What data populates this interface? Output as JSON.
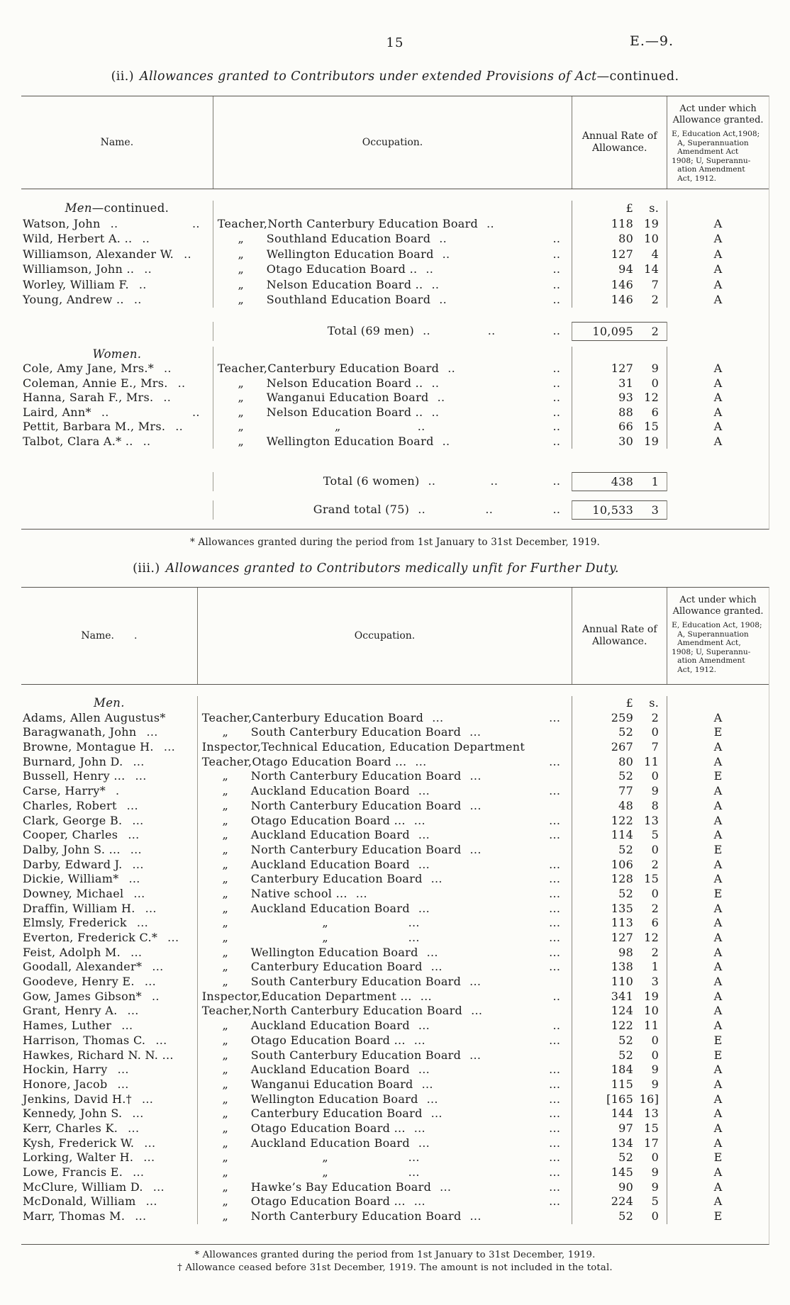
{
  "page": {
    "number": "15",
    "ref": "E.—9."
  },
  "section_ii": {
    "title_prefix": "(ii.)",
    "title_italic": "Allowances granted to Contributors under extended Provisions of Act",
    "title_suffix": "—continued.",
    "header": {
      "name": "Name.",
      "occupation": "Occupation.",
      "rate_lines": [
        "Annual Rate of",
        "Allowance."
      ],
      "act_title_lines": [
        "Act under which",
        "Allowance granted."
      ],
      "act_key_lines": [
        "E, Education Act,1908;",
        "A, Superannuation",
        "Amendment Act",
        "1908; U, Superannu-",
        "ation Amendment",
        "Act, 1912."
      ]
    },
    "money_header": {
      "pounds": "£",
      "shillings": "s."
    },
    "group_men": {
      "italic": "Men",
      "rest": "—continued."
    },
    "group_women": {
      "italic": "Women.",
      "rest": ""
    },
    "men_rows": [
      {
        "name": "Watson, John",
        "name_dots": ".. ..",
        "occ_prefix": "Teacher,",
        "occ": "North Canterbury Education Board",
        "occ_dots": "..",
        "pounds": "118",
        "shillings": "19",
        "act": "A"
      },
      {
        "name": "Wild, Herbert A. ..",
        "name_dots": "..",
        "occ_prefix": "„",
        "occ": "Southland Education Board",
        "occ_dots": ".. ..",
        "pounds": "80",
        "shillings": "10",
        "act": "A"
      },
      {
        "name": "Williamson, Alexander W.",
        "name_dots": "..",
        "occ_prefix": "„",
        "occ": "Wellington Education Board",
        "occ_dots": ".. ..",
        "pounds": "127",
        "shillings": "4",
        "act": "A"
      },
      {
        "name": "Williamson, John ..",
        "name_dots": "..",
        "occ_prefix": "„",
        "occ": "Otago Education Board ..",
        "occ_dots": ".. ..",
        "pounds": "94",
        "shillings": "14",
        "act": "A"
      },
      {
        "name": "Worley, William F.",
        "name_dots": "..",
        "occ_prefix": "„",
        "occ": "Nelson Education Board ..",
        "occ_dots": ".. ..",
        "pounds": "146",
        "shillings": "7",
        "act": "A"
      },
      {
        "name": "Young, Andrew ..",
        "name_dots": "..",
        "occ_prefix": "„",
        "occ": "Southland Education Board",
        "occ_dots": ".. ..",
        "pounds": "146",
        "shillings": "2",
        "act": "A"
      }
    ],
    "total_men": {
      "label": "Total (69 men)",
      "dots": ".. .. ..",
      "pounds": "10,095",
      "shillings": "2"
    },
    "women_rows": [
      {
        "name": "Cole, Amy Jane, Mrs.*",
        "name_dots": "..",
        "occ_prefix": "Teacher,",
        "occ": "Canterbury Education Board",
        "occ_dots": ".. ..",
        "pounds": "127",
        "shillings": "9",
        "act": "A"
      },
      {
        "name": "Coleman, Annie E., Mrs.",
        "name_dots": "..",
        "occ_prefix": "„",
        "occ": "Nelson Education Board ..",
        "occ_dots": ".. ..",
        "pounds": "31",
        "shillings": "0",
        "act": "A"
      },
      {
        "name": "Hanna, Sarah F., Mrs.",
        "name_dots": "..",
        "occ_prefix": "„",
        "occ": "Wanganui Education Board",
        "occ_dots": ".. ..",
        "pounds": "93",
        "shillings": "12",
        "act": "A"
      },
      {
        "name": "Laird, Ann*",
        "name_dots": ".. ..",
        "occ_prefix": "„",
        "occ": "Nelson Education Board ..",
        "occ_dots": ".. ..",
        "pounds": "88",
        "shillings": "6",
        "act": "A"
      },
      {
        "name": "Pettit, Barbara M., Mrs.",
        "name_dots": "..",
        "occ_prefix": "„",
        "occ": "„",
        "occ_dots": ".. ..",
        "pounds": "66",
        "shillings": "15",
        "act": "A"
      },
      {
        "name": "Talbot, Clara A.* ..",
        "name_dots": "..",
        "occ_prefix": "„",
        "occ": "Wellington Education Board",
        "occ_dots": ".. ..",
        "pounds": "30",
        "shillings": "19",
        "act": "A"
      }
    ],
    "total_women": {
      "label": "Total (6 women)",
      "dots": ".. .. ..",
      "pounds": "438",
      "shillings": "1"
    },
    "grand_total": {
      "label": "Grand total (75)",
      "dots": ".. .. ..",
      "pounds": "10,533",
      "shillings": "3"
    },
    "footnote": "* Allowances granted during the period from 1st January to 31st December, 1919."
  },
  "section_iii": {
    "title_prefix": "(iii.)",
    "title_italic": "Allowances granted to Contributors medically unfit for Further Duty.",
    "title_suffix": "",
    "header": {
      "name": "Name.",
      "stray_dot": ".",
      "occupation": "Occupation.",
      "rate_lines": [
        "Annual Rate of",
        "Allowance."
      ],
      "act_title_lines": [
        "Act under which",
        "Allowance granted."
      ],
      "act_key_lines": [
        "E, Education Act, 1908;",
        "A, Superannuation",
        "Amendment Act,",
        "1908; U, Superannu-",
        "ation Amendment",
        "Act, 1912."
      ]
    },
    "money_header": {
      "pounds": "£",
      "shillings": "s."
    },
    "group_men": {
      "italic": "Men.",
      "rest": ""
    },
    "rows": [
      {
        "name": "Adams, Allen Augustus*",
        "name_dots": "",
        "occ_prefix": "Teacher,",
        "occ": "Canterbury Education Board",
        "occ_dots": "... ...",
        "pounds": "259",
        "shillings": "2",
        "act": "A"
      },
      {
        "name": "Baragwanath, John",
        "name_dots": "...",
        "occ_prefix": "„",
        "occ": "South Canterbury Education Board",
        "occ_dots": "...",
        "pounds": "52",
        "shillings": "0",
        "act": "E"
      },
      {
        "name": "Browne, Montague H.",
        "name_dots": "...",
        "occ_prefix": "Inspector,",
        "occ": "Technical Education, Education Department",
        "occ_dots": "",
        "pounds": "267",
        "shillings": "7",
        "act": "A"
      },
      {
        "name": "Burnard, John D.",
        "name_dots": "...",
        "occ_prefix": "Teacher,",
        "occ": "Otago Education Board ...",
        "occ_dots": "... ...",
        "pounds": "80",
        "shillings": "11",
        "act": "A"
      },
      {
        "name": "Bussell, Henry ...",
        "name_dots": "...",
        "occ_prefix": "„",
        "occ": "North Canterbury Education Board",
        "occ_dots": "...",
        "pounds": "52",
        "shillings": "0",
        "act": "E"
      },
      {
        "name": "Carse, Harry*",
        "name_dots": ".",
        "occ_prefix": "„",
        "occ": "Auckland Education Board",
        "occ_dots": "... ...",
        "pounds": "77",
        "shillings": "9",
        "act": "A"
      },
      {
        "name": "Charles, Robert",
        "name_dots": "...",
        "occ_prefix": "„",
        "occ": "North Canterbury Education Board",
        "occ_dots": "...",
        "pounds": "48",
        "shillings": "8",
        "act": "A"
      },
      {
        "name": "Clark, George B.",
        "name_dots": "...",
        "occ_prefix": "„",
        "occ": "Otago Education Board ...",
        "occ_dots": "... ...",
        "pounds": "122",
        "shillings": "13",
        "act": "A"
      },
      {
        "name": "Cooper, Charles",
        "name_dots": "...",
        "occ_prefix": "„",
        "occ": "Auckland Education Board",
        "occ_dots": "... ...",
        "pounds": "114",
        "shillings": "5",
        "act": "A"
      },
      {
        "name": "Dalby, John S. ...",
        "name_dots": "...",
        "occ_prefix": "„",
        "occ": "North Canterbury Education Board",
        "occ_dots": "...",
        "pounds": "52",
        "shillings": "0",
        "act": "E"
      },
      {
        "name": "Darby, Edward J.",
        "name_dots": "...",
        "occ_prefix": "„",
        "occ": "Auckland Education Board",
        "occ_dots": "... ...",
        "pounds": "106",
        "shillings": "2",
        "act": "A"
      },
      {
        "name": "Dickie, William*",
        "name_dots": "...",
        "occ_prefix": "„",
        "occ": "Canterbury Education Board",
        "occ_dots": "... ...",
        "pounds": "128",
        "shillings": "15",
        "act": "A"
      },
      {
        "name": "Downey, Michael",
        "name_dots": "...",
        "occ_prefix": "„",
        "occ": "Native school ...",
        "occ_dots": "... ...",
        "pounds": "52",
        "shillings": "0",
        "act": "E"
      },
      {
        "name": "Draffin, William H.",
        "name_dots": "...",
        "occ_prefix": "„",
        "occ": "Auckland Education Board",
        "occ_dots": "... ...",
        "pounds": "135",
        "shillings": "2",
        "act": "A"
      },
      {
        "name": "Elmsly, Frederick",
        "name_dots": "...",
        "occ_prefix": "„",
        "occ": "„",
        "occ_dots": "... ...",
        "pounds": "113",
        "shillings": "6",
        "act": "A"
      },
      {
        "name": "Everton, Frederick C.*",
        "name_dots": "...",
        "occ_prefix": "„",
        "occ": "„",
        "occ_dots": "... ...",
        "pounds": "127",
        "shillings": "12",
        "act": "A"
      },
      {
        "name": "Feist, Adolph M.",
        "name_dots": "...",
        "occ_prefix": "„",
        "occ": "Wellington Education Board",
        "occ_dots": "... ...",
        "pounds": "98",
        "shillings": "2",
        "act": "A"
      },
      {
        "name": "Goodall, Alexander*",
        "name_dots": "...",
        "occ_prefix": "„",
        "occ": "Canterbury Education Board",
        "occ_dots": "... ...",
        "pounds": "138",
        "shillings": "1",
        "act": "A"
      },
      {
        "name": "Goodeve, Henry E.",
        "name_dots": "...",
        "occ_prefix": "„",
        "occ": "South Canterbury Education Board",
        "occ_dots": "...",
        "pounds": "110",
        "shillings": "3",
        "act": "A"
      },
      {
        "name": "Gow, James Gibson*",
        "name_dots": "..",
        "occ_prefix": "Inspector,",
        "occ": "Education Department ...",
        "occ_dots": "... ..",
        "pounds": "341",
        "shillings": "19",
        "act": "A"
      },
      {
        "name": "Grant, Henry A.",
        "name_dots": "...",
        "occ_prefix": "Teacher,",
        "occ": "North Canterbury Education Board",
        "occ_dots": "...",
        "pounds": "124",
        "shillings": "10",
        "act": "A"
      },
      {
        "name": "Hames, Luther",
        "name_dots": "...",
        "occ_prefix": "„",
        "occ": "Auckland Education Board",
        "occ_dots": "... ..",
        "pounds": "122",
        "shillings": "11",
        "act": "A"
      },
      {
        "name": "Harrison, Thomas C.",
        "name_dots": "...",
        "occ_prefix": "„",
        "occ": "Otago Education Board ...",
        "occ_dots": "... ...",
        "pounds": "52",
        "shillings": "0",
        "act": "E"
      },
      {
        "name": "Hawkes, Richard N. N. ...",
        "name_dots": "",
        "occ_prefix": "„",
        "occ": "South Canterbury Education Board",
        "occ_dots": "...",
        "pounds": "52",
        "shillings": "0",
        "act": "E"
      },
      {
        "name": "Hockin, Harry",
        "name_dots": "...",
        "occ_prefix": "„",
        "occ": "Auckland Education Board",
        "occ_dots": "... ...",
        "pounds": "184",
        "shillings": "9",
        "act": "A"
      },
      {
        "name": "Honore, Jacob",
        "name_dots": "...",
        "occ_prefix": "„",
        "occ": "Wanganui Education Board",
        "occ_dots": "... ...",
        "pounds": "115",
        "shillings": "9",
        "act": "A"
      },
      {
        "name": "Jenkins, David H.†",
        "name_dots": "...",
        "occ_prefix": "„",
        "occ": "Wellington Education Board",
        "occ_dots": "... ...",
        "pounds": "[165",
        "shillings": "16]",
        "act": "A"
      },
      {
        "name": "Kennedy, John S.",
        "name_dots": "...",
        "occ_prefix": "„",
        "occ": "Canterbury Education Board",
        "occ_dots": "... ...",
        "pounds": "144",
        "shillings": "13",
        "act": "A"
      },
      {
        "name": "Kerr, Charles K.",
        "name_dots": "...",
        "occ_prefix": "„",
        "occ": "Otago Education Board ...",
        "occ_dots": "... ...",
        "pounds": "97",
        "shillings": "15",
        "act": "A"
      },
      {
        "name": "Kysh, Frederick W.",
        "name_dots": "...",
        "occ_prefix": "„",
        "occ": "Auckland Education Board",
        "occ_dots": "... ...",
        "pounds": "134",
        "shillings": "17",
        "act": "A"
      },
      {
        "name": "Lorking, Walter H.",
        "name_dots": "...",
        "occ_prefix": "„",
        "occ": "„",
        "occ_dots": "... ...",
        "pounds": "52",
        "shillings": "0",
        "act": "E"
      },
      {
        "name": "Lowe, Francis E.",
        "name_dots": "...",
        "occ_prefix": "„",
        "occ": "„",
        "occ_dots": "... ...",
        "pounds": "145",
        "shillings": "9",
        "act": "A"
      },
      {
        "name": "McClure, William D.",
        "name_dots": "...",
        "occ_prefix": "„",
        "occ": "Hawke’s Bay Education Board",
        "occ_dots": "... ...",
        "pounds": "90",
        "shillings": "9",
        "act": "A"
      },
      {
        "name": "McDonald, William",
        "name_dots": "...",
        "occ_prefix": "„",
        "occ": "Otago Education Board ...",
        "occ_dots": "... ...",
        "pounds": "224",
        "shillings": "5",
        "act": "A"
      },
      {
        "name": "Marr, Thomas M.",
        "name_dots": "...",
        "occ_prefix": "„",
        "occ": "North Canterbury Education Board",
        "occ_dots": "...",
        "pounds": "52",
        "shillings": "0",
        "act": "E"
      }
    ],
    "footnote1": "* Allowances granted during the period from 1st January to 31st December, 1919.",
    "footnote2": "† Allowance ceased before 31st December, 1919.  The amount is not included in the total."
  }
}
